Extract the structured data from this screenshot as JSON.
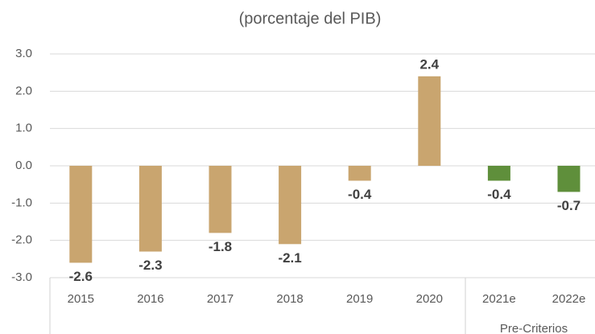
{
  "chart_data": {
    "type": "bar",
    "title": "(porcentaje del PIB)",
    "categories": [
      "2015",
      "2016",
      "2017",
      "2018",
      "2019",
      "2020",
      "2021e",
      "2022e"
    ],
    "values": [
      -2.6,
      -2.3,
      -1.8,
      -2.1,
      -0.4,
      2.4,
      -0.4,
      -0.7
    ],
    "colors": [
      "#c9a56f",
      "#c9a56f",
      "#c9a56f",
      "#c9a56f",
      "#c9a56f",
      "#c9a56f",
      "#5f8f3b",
      "#5f8f3b"
    ],
    "ylim": [
      -3,
      3
    ],
    "yticks": [
      {
        "value": 3,
        "label": "3.0"
      },
      {
        "value": 2,
        "label": "2.0"
      },
      {
        "value": 1,
        "label": "1.0"
      },
      {
        "value": 0,
        "label": "0.0"
      },
      {
        "value": -1,
        "label": "-1.0"
      },
      {
        "value": -2,
        "label": "-2.0"
      },
      {
        "value": -3,
        "label": "-3.0"
      }
    ],
    "grid": true,
    "annotation": "Pre-Criterios"
  }
}
